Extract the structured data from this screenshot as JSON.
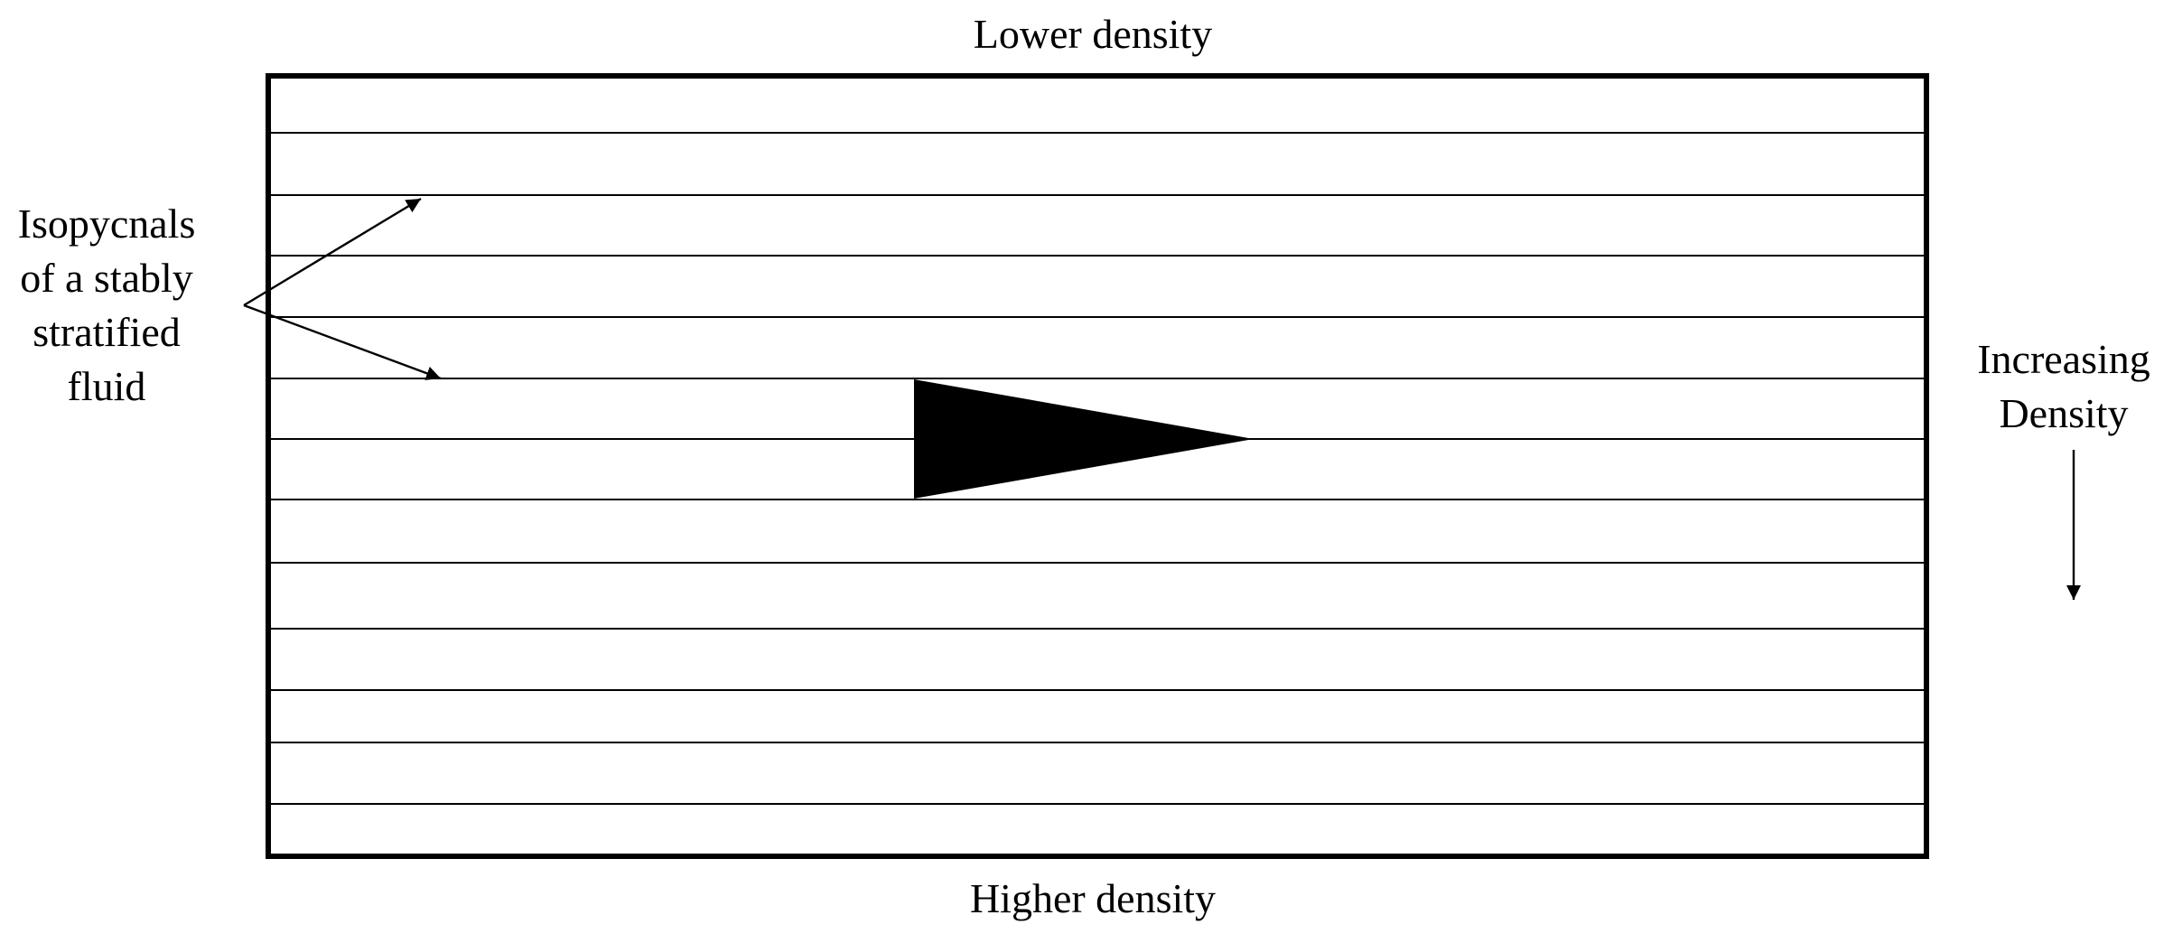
{
  "diagram": {
    "top_label": "Lower density",
    "bottom_label": "Higher density",
    "isopycnal_label_lines": [
      "Isopycnals",
      "of a stably",
      "stratified",
      "fluid"
    ],
    "density_label_lines": [
      "Increasing",
      "Density"
    ],
    "isopycnal_count": 13,
    "colors": {
      "stroke": "#000000",
      "background": "#ffffff",
      "wedge_fill": "#000000"
    },
    "icons": {
      "pointer_arrows": "arrow-icon",
      "density_arrow": "arrow-down-icon"
    }
  }
}
